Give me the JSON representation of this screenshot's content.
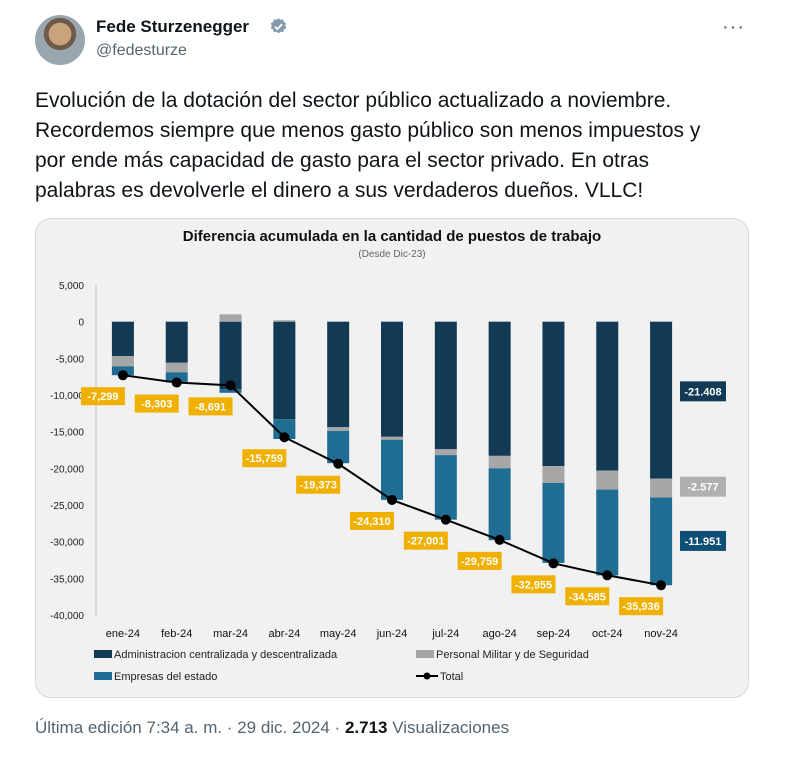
{
  "author": {
    "display_name": "Fede Sturzenegger",
    "handle": "@fedesturze",
    "verified_icon": "verified-badge-icon",
    "more_icon": "more-options-icon"
  },
  "tweet": {
    "text": "Evolución de la dotación del sector público actualizado a noviembre.\nRecordemos siempre que menos gasto público son menos impuestos y\npor ende más capacidad de gasto para el sector privado. En otras\npalabras es devolverle el dinero a sus verdaderos dueños. VLLC!"
  },
  "meta": {
    "edited": "Última edición 7:34 a. m. · 29 dic. 2024 · ",
    "views_count": "2.713",
    "views_label": " Visualizaciones"
  },
  "colors": {
    "admin": "#123a55",
    "military": "#a6a6a6",
    "empresas": "#1f6d93",
    "total_label_bg": "#f0b000",
    "right_admin_bg": "#123a55",
    "right_military_bg": "#b0b0b0",
    "right_empresas_bg": "#0f4f75"
  },
  "chart_data": {
    "type": "bar",
    "title": "Diferencia acumulada en la cantidad de puestos de trabajo",
    "subtitle": "(Desde Dic-23)",
    "categories": [
      "ene-24",
      "feb-24",
      "mar-24",
      "abr-24",
      "may-24",
      "jun-24",
      "jul-24",
      "ago-24",
      "sep-24",
      "oct-24",
      "nov-24"
    ],
    "ylim": [
      -40000,
      5000
    ],
    "yticks": [
      "5,000",
      "0",
      "-5,000",
      "-10,000",
      "-15,000",
      "-20,000",
      "-25,000",
      "-30,000",
      "-35,000",
      "-40,000"
    ],
    "series": [
      {
        "name": "Administracion centralizada y descentralizada",
        "values": [
          -4700,
          -5600,
          -9200,
          -13300,
          -14400,
          -15700,
          -17400,
          -18300,
          -19700,
          -20300,
          -21408
        ]
      },
      {
        "name": "Personal Militar y de Seguridad",
        "values": [
          -1400,
          -1300,
          1000,
          200,
          -500,
          -400,
          -800,
          -1700,
          -2300,
          -2600,
          -2577
        ]
      },
      {
        "name": "Empresas del estado",
        "values": [
          -1200,
          -1400,
          -500,
          -2700,
          -4400,
          -8200,
          -8800,
          -9800,
          -10900,
          -11700,
          -11951
        ]
      }
    ],
    "total": {
      "name": "Total",
      "values": [
        -7299,
        -8303,
        -8691,
        -15759,
        -19373,
        -24310,
        -27001,
        -29759,
        -32955,
        -34585,
        -35936
      ]
    },
    "total_labels": [
      "-7,299",
      "-8,303",
      "-8,691",
      "-15,759",
      "-19,373",
      "-24,310",
      "-27,001",
      "-29,759",
      "-32,955",
      "-34,585",
      "-35,936"
    ],
    "right_labels": [
      "-21.408",
      "-2.577",
      "-11.951"
    ]
  }
}
